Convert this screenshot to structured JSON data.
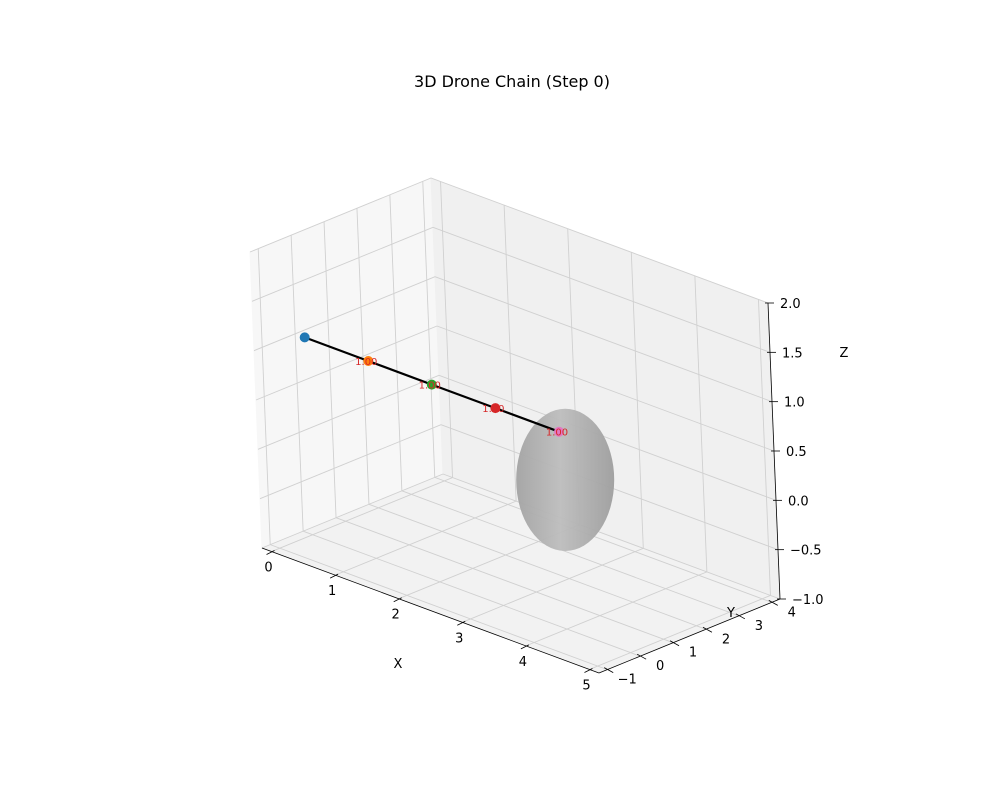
{
  "chart_data": {
    "type": "scatter3d",
    "title": "3D Drone Chain (Step 0)",
    "xlabel": "X",
    "ylabel": "Y",
    "zlabel": "Z",
    "xlim": [
      -0.15,
      5.15
    ],
    "ylim": [
      -1.25,
      4.25
    ],
    "zlim": [
      -1.0,
      2.0
    ],
    "xticks": [
      {
        "value": 0,
        "label": "0"
      },
      {
        "value": 1,
        "label": "1"
      },
      {
        "value": 2,
        "label": "2"
      },
      {
        "value": 3,
        "label": "3"
      },
      {
        "value": 4,
        "label": "4"
      },
      {
        "value": 5,
        "label": "5"
      }
    ],
    "yticks": [
      {
        "value": -1,
        "label": "−1"
      },
      {
        "value": 0,
        "label": "0"
      },
      {
        "value": 1,
        "label": "1"
      },
      {
        "value": 2,
        "label": "2"
      },
      {
        "value": 3,
        "label": "3"
      },
      {
        "value": 4,
        "label": "4"
      }
    ],
    "zticks": [
      {
        "value": -1.0,
        "label": "−1.0"
      },
      {
        "value": -0.5,
        "label": "−0.5"
      },
      {
        "value": 0.0,
        "label": "0.0"
      },
      {
        "value": 0.5,
        "label": "0.5"
      },
      {
        "value": 1.0,
        "label": "1.0"
      },
      {
        "value": 1.5,
        "label": "1.5"
      },
      {
        "value": 2.0,
        "label": "2.0"
      }
    ],
    "grid": true,
    "drones": [
      {
        "x": 0,
        "y": 0,
        "z": 1,
        "color": "#1f77b4"
      },
      {
        "x": 1,
        "y": 0,
        "z": 1,
        "color": "#ff7f0e"
      },
      {
        "x": 2,
        "y": 0,
        "z": 1,
        "color": "#2ca02c"
      },
      {
        "x": 3,
        "y": 0,
        "z": 1,
        "color": "#d62728"
      },
      {
        "x": 4,
        "y": 0,
        "z": 1,
        "color": "#e377c2"
      }
    ],
    "links": [
      {
        "from": 0,
        "to": 1,
        "label": "1.00"
      },
      {
        "from": 1,
        "to": 2,
        "label": "1.00"
      },
      {
        "from": 2,
        "to": 3,
        "label": "1.00"
      },
      {
        "from": 3,
        "to": 4,
        "label": "1.00"
      }
    ],
    "obstacle": {
      "shape": "sphere",
      "center": [
        3,
        2,
        0
      ],
      "radius": 0.7,
      "color": "#9e9e9e"
    },
    "line_color": "#000000"
  }
}
